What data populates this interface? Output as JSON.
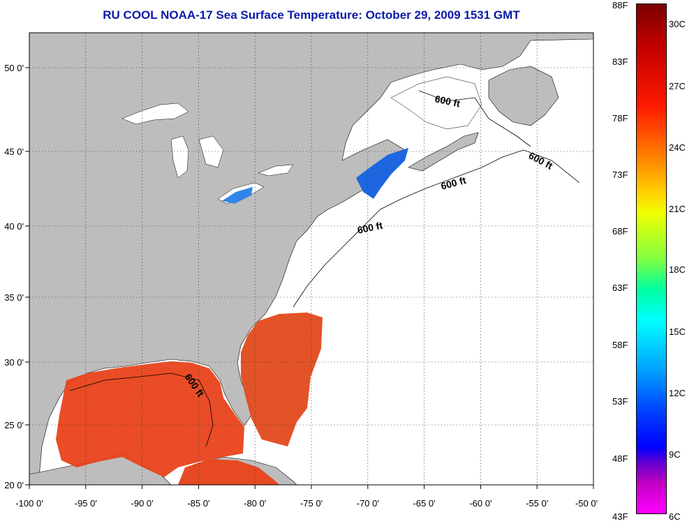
{
  "title": "RU COOL  NOAA-17  Sea Surface Temperature:  October 29, 2009 1531 GMT",
  "map": {
    "lon_ticks": [
      "-100 0'",
      "-95 0'",
      "-90 0'",
      "-85 0'",
      "-80 0'",
      "-75 0'",
      "-70 0'",
      "-65 0'",
      "-60 0'",
      "-55 0'",
      "-50 0'"
    ],
    "lat_ticks": [
      "50 0'",
      "45 0'",
      "40 0'",
      "35 0'",
      "30 0'",
      "25 0'",
      "20 0'"
    ],
    "lon_range": [
      -100,
      -50
    ],
    "lat_range": [
      20,
      52.5
    ],
    "contour_labels": [
      "600 ft",
      "600 ft",
      "600 ft",
      "600 ft",
      "600 ft"
    ],
    "colors": {
      "land": "#bdbdbd",
      "ocean": "#ffffff",
      "warm": "#e8421a",
      "cool": "#1e66e0"
    }
  },
  "colorbar": {
    "fahrenheit": [
      "88F",
      "83F",
      "78F",
      "73F",
      "68F",
      "63F",
      "58F",
      "53F",
      "48F",
      "43F"
    ],
    "celsius": [
      "30C",
      "27C",
      "24C",
      "21C",
      "18C",
      "15C",
      "12C",
      "9C",
      "6C"
    ]
  }
}
